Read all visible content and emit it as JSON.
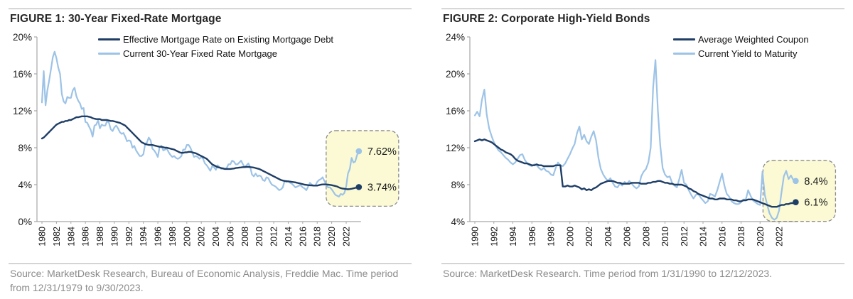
{
  "colors": {
    "dark_series": "#1F3E66",
    "light_series": "#9DC3E6",
    "axis": "#A6A6A6",
    "tick_text": "#1A1A1A",
    "callout_fill": "#FBFAD5",
    "callout_border": "#8C8C8C",
    "title_text": "#262626",
    "source_text": "#8C8C8C"
  },
  "chart_data": [
    {
      "type": "line",
      "title": "FIGURE 1: 30-Year Fixed-Rate Mortgage",
      "source": "Source: MarketDesk Research, Bureau of Economic Analysis, Freddie Mac. Time period from 12/31/1979 to 9/30/2023.",
      "xlabel": "",
      "ylabel": "",
      "grid": false,
      "legend_position": "top-center-right",
      "ylim": [
        0,
        20
      ],
      "y_ticks": [
        {
          "v": 0,
          "label": "0%"
        },
        {
          "v": 4,
          "label": "4%"
        },
        {
          "v": 8,
          "label": "8%"
        },
        {
          "v": 12,
          "label": "12%"
        },
        {
          "v": 16,
          "label": "16%"
        },
        {
          "v": 20,
          "label": "20%"
        }
      ],
      "x_ticks": [
        1980,
        1982,
        1984,
        1986,
        1988,
        1990,
        1992,
        1994,
        1996,
        1998,
        2000,
        2002,
        2004,
        2006,
        2008,
        2010,
        2012,
        2014,
        2016,
        2018,
        2020,
        2022
      ],
      "x_start": 1980,
      "x_step": 0.25,
      "callout": {
        "labels": [
          "7.62%",
          "3.74%"
        ],
        "style": "dashed rounded yellow box"
      },
      "series": [
        {
          "name": "Effective Mortgage Rate on Existing Mortgage Debt",
          "color_key": "dark_series",
          "end_label": "3.74%",
          "values": [
            9.0,
            9.1,
            9.3,
            9.5,
            9.7,
            9.9,
            10.1,
            10.3,
            10.5,
            10.6,
            10.7,
            10.8,
            10.8,
            10.9,
            10.9,
            11.0,
            11.0,
            11.1,
            11.2,
            11.3,
            11.3,
            11.35,
            11.4,
            11.4,
            11.4,
            11.4,
            11.35,
            11.3,
            11.2,
            11.15,
            11.1,
            11.1,
            11.1,
            11.0,
            11.0,
            11.0,
            11.0,
            10.95,
            10.9,
            10.9,
            10.85,
            10.8,
            10.75,
            10.7,
            10.6,
            10.5,
            10.4,
            10.2,
            10.0,
            9.8,
            9.6,
            9.4,
            9.2,
            9.0,
            8.8,
            8.6,
            8.5,
            8.4,
            8.35,
            8.3,
            8.3,
            8.3,
            8.25,
            8.2,
            8.15,
            8.1,
            8.1,
            8.05,
            8.0,
            8.0,
            7.95,
            7.9,
            7.85,
            7.8,
            7.7,
            7.6,
            7.5,
            7.45,
            7.45,
            7.5,
            7.5,
            7.55,
            7.55,
            7.5,
            7.45,
            7.4,
            7.3,
            7.2,
            7.1,
            7.0,
            6.9,
            6.8,
            6.6,
            6.4,
            6.2,
            6.1,
            6.0,
            5.9,
            5.85,
            5.8,
            5.75,
            5.7,
            5.7,
            5.7,
            5.7,
            5.72,
            5.75,
            5.8,
            5.82,
            5.85,
            5.87,
            5.9,
            5.9,
            5.92,
            5.93,
            5.9,
            5.88,
            5.85,
            5.8,
            5.75,
            5.7,
            5.6,
            5.5,
            5.4,
            5.3,
            5.2,
            5.1,
            5.0,
            4.9,
            4.8,
            4.7,
            4.6,
            4.5,
            4.45,
            4.4,
            4.38,
            4.35,
            4.33,
            4.3,
            4.28,
            4.25,
            4.2,
            4.15,
            4.1,
            4.05,
            4.0,
            3.98,
            3.95,
            3.93,
            3.92,
            3.9,
            3.9,
            3.9,
            3.95,
            4.0,
            4.02,
            4.03,
            4.02,
            4.0,
            3.98,
            3.95,
            3.9,
            3.85,
            3.8,
            3.7,
            3.62,
            3.58,
            3.55,
            3.52,
            3.5,
            3.52,
            3.55,
            3.6,
            3.65,
            3.7,
            3.74
          ]
        },
        {
          "name": "Current 30-Year Fixed Rate Mortgage",
          "color_key": "light_series",
          "end_label": "7.62%",
          "values": [
            12.9,
            16.3,
            12.6,
            14.2,
            15.3,
            16.5,
            17.8,
            18.4,
            17.7,
            16.7,
            16.0,
            13.8,
            13.0,
            12.8,
            13.5,
            13.4,
            13.4,
            14.2,
            14.5,
            13.6,
            13.1,
            12.8,
            12.2,
            12.3,
            10.8,
            10.7,
            10.3,
            9.9,
            9.2,
            10.4,
            10.5,
            11.0,
            10.1,
            10.5,
            10.4,
            10.4,
            10.9,
            10.7,
            10.0,
            9.8,
            10.2,
            10.4,
            10.1,
            9.7,
            9.5,
            9.6,
            9.2,
            8.7,
            8.8,
            8.7,
            8.0,
            8.2,
            7.7,
            7.4,
            7.1,
            7.1,
            7.3,
            8.4,
            8.6,
            9.1,
            8.8,
            7.9,
            7.7,
            7.4,
            7.0,
            8.1,
            8.2,
            7.7,
            7.8,
            7.9,
            7.5,
            7.2,
            7.0,
            7.1,
            6.9,
            6.8,
            6.9,
            7.1,
            7.8,
            7.8,
            8.3,
            8.3,
            8.0,
            7.5,
            7.0,
            7.1,
            7.0,
            6.8,
            7.0,
            6.8,
            6.3,
            6.1,
            5.8,
            5.5,
            6.0,
            5.9,
            5.6,
            6.1,
            5.9,
            5.7,
            5.8,
            5.7,
            5.8,
            6.2,
            6.2,
            6.6,
            6.5,
            6.2,
            6.2,
            6.4,
            6.6,
            6.2,
            5.9,
            6.1,
            6.3,
            5.9,
            5.1,
            4.9,
            5.2,
            4.9,
            5.0,
            4.9,
            4.5,
            4.4,
            4.8,
            4.7,
            4.3,
            4.0,
            3.9,
            3.8,
            3.6,
            3.4,
            3.5,
            3.7,
            4.4,
            4.3,
            4.4,
            4.2,
            4.1,
            3.9,
            3.7,
            3.8,
            3.9,
            3.9,
            3.7,
            3.6,
            3.4,
            3.8,
            4.2,
            4.0,
            3.9,
            3.9,
            4.3,
            4.5,
            4.6,
            4.8,
            4.4,
            4.0,
            3.7,
            3.7,
            3.5,
            3.2,
            2.9,
            2.8,
            2.7,
            3.0,
            2.9,
            3.1,
            3.8,
            5.2,
            5.7,
            6.9,
            6.4,
            6.5,
            7.2,
            7.62
          ]
        }
      ]
    },
    {
      "type": "line",
      "title": "FIGURE 2: Corporate High-Yield Bonds",
      "source": "Source: MarketDesk Research. Time period from 1/31/1990 to 12/12/2023.",
      "xlabel": "",
      "ylabel": "",
      "grid": false,
      "legend_position": "top-right",
      "ylim": [
        4,
        24
      ],
      "y_ticks": [
        {
          "v": 4,
          "label": "4%"
        },
        {
          "v": 8,
          "label": "8%"
        },
        {
          "v": 12,
          "label": "12%"
        },
        {
          "v": 16,
          "label": "16%"
        },
        {
          "v": 20,
          "label": "20%"
        },
        {
          "v": 24,
          "label": "24%"
        }
      ],
      "x_ticks": [
        1990,
        1992,
        1994,
        1996,
        1998,
        2000,
        2002,
        2004,
        2006,
        2008,
        2010,
        2012,
        2014,
        2016,
        2018,
        2020,
        2022
      ],
      "x_start": 1990,
      "x_step": 0.25,
      "callout": {
        "labels": [
          "8.4%",
          "6.1%"
        ],
        "style": "dashed rounded yellow box"
      },
      "series": [
        {
          "name": "Average Weighted Coupon",
          "color_key": "dark_series",
          "end_label": "6.1%",
          "values": [
            12.7,
            12.8,
            12.9,
            12.8,
            12.9,
            12.8,
            12.7,
            12.6,
            12.4,
            12.2,
            12.0,
            11.8,
            11.7,
            11.5,
            11.4,
            11.3,
            11.1,
            10.8,
            10.6,
            10.5,
            10.4,
            10.3,
            10.3,
            10.2,
            10.1,
            10.1,
            10.2,
            10.1,
            10.1,
            10.0,
            10.0,
            10.0,
            10.0,
            10.0,
            10.1,
            10.1,
            10.1,
            7.8,
            7.8,
            7.9,
            7.8,
            7.8,
            7.9,
            7.8,
            7.7,
            7.5,
            7.6,
            7.4,
            7.5,
            7.4,
            7.6,
            7.7,
            7.9,
            8.1,
            8.2,
            8.3,
            8.4,
            8.4,
            8.4,
            8.3,
            8.2,
            8.2,
            8.1,
            8.1,
            8.1,
            8.1,
            8.2,
            8.2,
            8.2,
            8.2,
            8.1,
            8.1,
            8.1,
            8.2,
            8.2,
            8.3,
            8.3,
            8.4,
            8.4,
            8.3,
            8.2,
            8.2,
            8.1,
            8.1,
            8.0,
            8.0,
            8.0,
            8.0,
            7.9,
            7.8,
            7.6,
            7.5,
            7.3,
            7.2,
            7.0,
            6.9,
            6.8,
            6.7,
            6.6,
            6.5,
            6.5,
            6.4,
            6.4,
            6.5,
            6.5,
            6.5,
            6.4,
            6.4,
            6.4,
            6.3,
            6.3,
            6.2,
            6.2,
            6.3,
            6.3,
            6.4,
            6.4,
            6.4,
            6.3,
            6.2,
            6.1,
            6.0,
            5.9,
            5.8,
            5.7,
            5.6,
            5.6,
            5.6,
            5.7,
            5.8,
            5.8,
            5.9,
            5.9,
            6.0,
            6.0,
            6.1
          ]
        },
        {
          "name": "Current Yield to Maturity",
          "color_key": "light_series",
          "end_label": "8.4%",
          "values": [
            15.5,
            15.9,
            15.4,
            17.2,
            18.3,
            15.6,
            14.1,
            13.3,
            12.6,
            12.1,
            11.7,
            11.5,
            11.2,
            10.9,
            10.7,
            10.4,
            10.2,
            10.4,
            10.8,
            11.2,
            11.3,
            10.7,
            10.3,
            10.1,
            10.0,
            10.2,
            10.1,
            9.8,
            9.6,
            9.8,
            9.5,
            9.4,
            9.1,
            9.0,
            9.8,
            10.4,
            10.1,
            10.0,
            10.3,
            10.8,
            11.3,
            11.9,
            12.4,
            13.6,
            14.3,
            12.9,
            13.4,
            12.7,
            12.4,
            13.2,
            13.8,
            12.8,
            10.9,
            9.7,
            9.1,
            8.7,
            8.4,
            8.7,
            8.2,
            7.8,
            7.7,
            8.1,
            7.9,
            8.3,
            8.1,
            8.4,
            8.1,
            7.8,
            7.6,
            7.8,
            8.9,
            9.4,
            9.7,
            10.4,
            12.0,
            18.5,
            21.5,
            16.0,
            12.3,
            9.8,
            9.1,
            8.8,
            8.9,
            8.2,
            7.9,
            7.7,
            8.6,
            9.6,
            8.2,
            8.0,
            7.4,
            6.9,
            6.5,
            6.9,
            7.0,
            6.6,
            6.3,
            6.0,
            6.2,
            7.0,
            6.9,
            6.7,
            7.4,
            8.3,
            9.2,
            7.9,
            7.0,
            6.7,
            6.2,
            6.0,
            5.9,
            5.9,
            6.1,
            6.4,
            6.4,
            7.4,
            6.8,
            6.3,
            6.1,
            5.9,
            5.8,
            9.4,
            6.9,
            5.8,
            4.9,
            4.4,
            4.2,
            4.4,
            5.2,
            7.1,
            8.9,
            9.5,
            8.6,
            9.0,
            8.5,
            8.4
          ]
        }
      ]
    }
  ]
}
